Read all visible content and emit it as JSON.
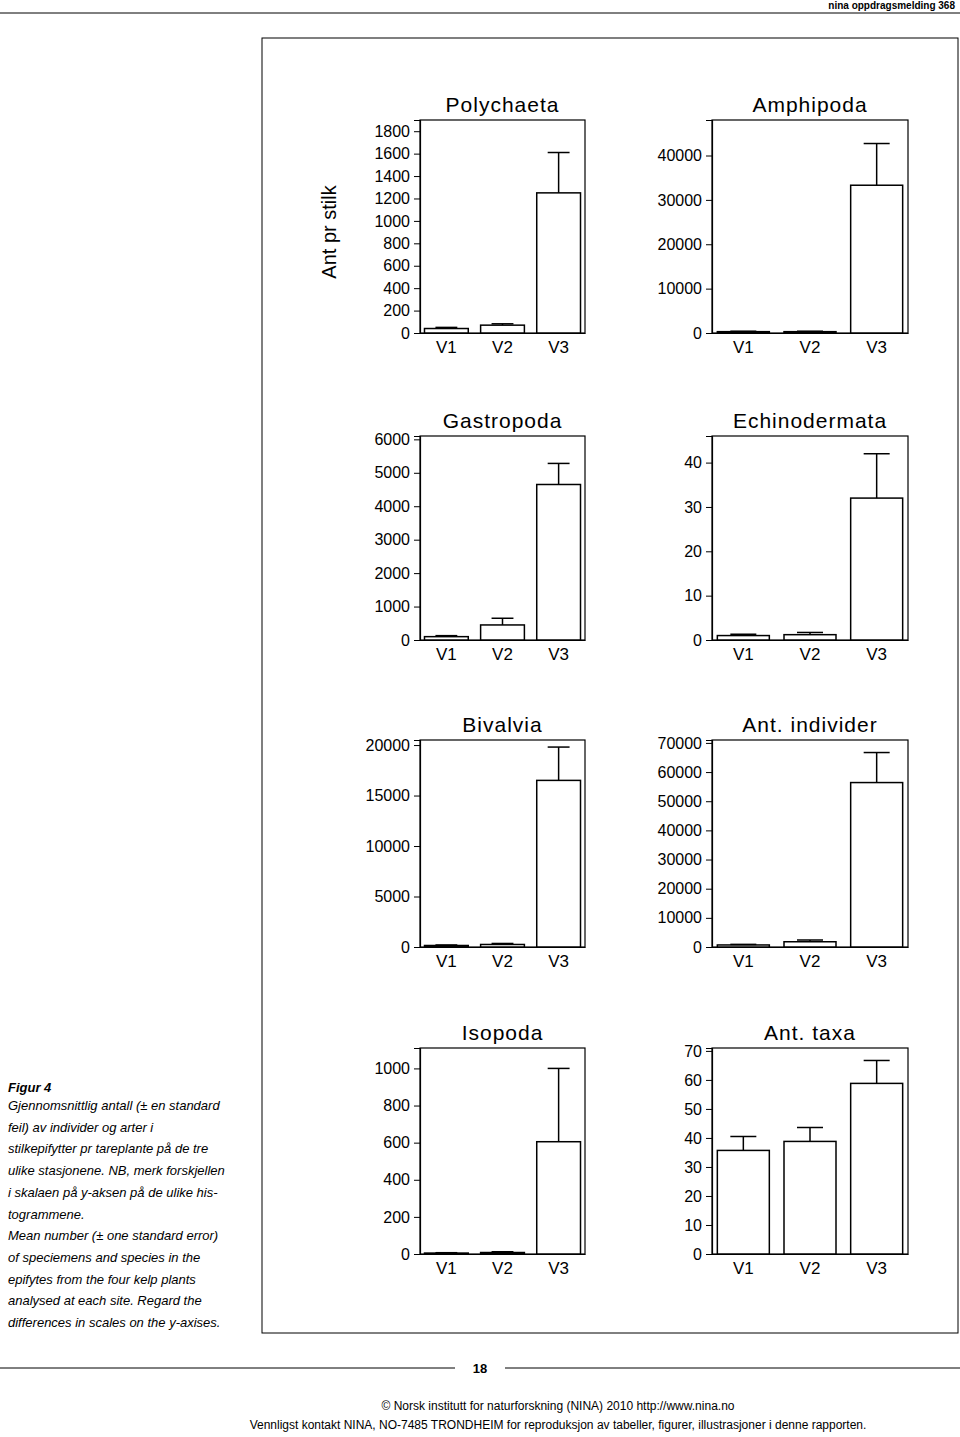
{
  "header": "nina oppdragsmelding 368",
  "y_axis_label": "Ant pr stilk",
  "caption": [
    "Figur 4",
    "Gjennomsnittlig antall (± en standard",
    "feil) av individer og arter i",
    "stilkepifytter pr tareplante på de tre",
    "ulike stasjonene. NB, merk forskjellen",
    "i skalaen på y-aksen på de ulike his-",
    "togrammene.",
    "Mean number (± one standard error)",
    "of speciemens and species in the",
    "epifytes from the four kelp plants",
    "analysed at each site. Regard the",
    "differences in scales on the y-axises."
  ],
  "page_number": "18",
  "footer": [
    "© Norsk institutt for naturforskning (NINA) 2010 http://www.nina.no",
    "Vennligst kontakt NINA, NO-7485 TRONDHEIM for reproduksjon av tabeller, figurer, illustrasjoner i denne rapporten."
  ],
  "chart_data": [
    {
      "type": "bar",
      "title": "Polychaeta",
      "categories": [
        "V1",
        "V2",
        "V3"
      ],
      "values": [
        40,
        70,
        1250
      ],
      "errors": [
        10,
        12,
        360
      ],
      "color": "#ffffff",
      "ylim": [
        0,
        1900
      ],
      "yticks": [
        0,
        200,
        400,
        600,
        800,
        1000,
        1200,
        1400,
        1600,
        1800
      ]
    },
    {
      "type": "bar",
      "title": "Amphipoda",
      "categories": [
        "V1",
        "V2",
        "V3"
      ],
      "values": [
        300,
        300,
        33300
      ],
      "errors": [
        100,
        100,
        9400
      ],
      "color": "#ffffff",
      "ylim": [
        0,
        48000
      ],
      "yticks": [
        0,
        10000,
        20000,
        30000,
        40000
      ]
    },
    {
      "type": "bar",
      "title": "Gastropoda",
      "categories": [
        "V1",
        "V2",
        "V3"
      ],
      "values": [
        100,
        450,
        4650
      ],
      "errors": [
        30,
        200,
        630
      ],
      "color": "#ffffff",
      "ylim": [
        0,
        6100
      ],
      "yticks": [
        0,
        1000,
        2000,
        3000,
        4000,
        5000,
        6000
      ]
    },
    {
      "type": "bar",
      "title": "Echinodermata",
      "categories": [
        "V1",
        "V2",
        "V3"
      ],
      "values": [
        1,
        1.2,
        32
      ],
      "errors": [
        0.3,
        0.5,
        10
      ],
      "color": "#ffffff",
      "ylim": [
        0,
        46
      ],
      "yticks": [
        0,
        10,
        20,
        30,
        40
      ]
    },
    {
      "type": "bar",
      "title": "Bivalvia",
      "categories": [
        "V1",
        "V2",
        "V3"
      ],
      "values": [
        150,
        250,
        16500
      ],
      "errors": [
        50,
        100,
        3300
      ],
      "color": "#ffffff",
      "ylim": [
        0,
        20500
      ],
      "yticks": [
        0,
        5000,
        10000,
        15000,
        20000
      ]
    },
    {
      "type": "bar",
      "title": "Ant. individer",
      "categories": [
        "V1",
        "V2",
        "V3"
      ],
      "values": [
        700,
        1800,
        56400
      ],
      "errors": [
        200,
        600,
        10300
      ],
      "color": "#ffffff",
      "ylim": [
        0,
        71000
      ],
      "yticks": [
        0,
        10000,
        20000,
        30000,
        40000,
        50000,
        60000,
        70000
      ]
    },
    {
      "type": "bar",
      "title": "Isopoda",
      "categories": [
        "V1",
        "V2",
        "V3"
      ],
      "values": [
        5,
        8,
        605
      ],
      "errors": [
        2,
        4,
        395
      ],
      "color": "#ffffff",
      "ylim": [
        0,
        1110
      ],
      "yticks": [
        0,
        200,
        400,
        600,
        800,
        1000
      ]
    },
    {
      "type": "bar",
      "title": "Ant. taxa",
      "categories": [
        "V1",
        "V2",
        "V3"
      ],
      "values": [
        35.7,
        38.8,
        58.8
      ],
      "errors": [
        4.8,
        4.8,
        7.9
      ],
      "color": "#ffffff",
      "ylim": [
        0,
        71
      ],
      "yticks": [
        0,
        10,
        20,
        30,
        40,
        50,
        60,
        70
      ]
    }
  ]
}
